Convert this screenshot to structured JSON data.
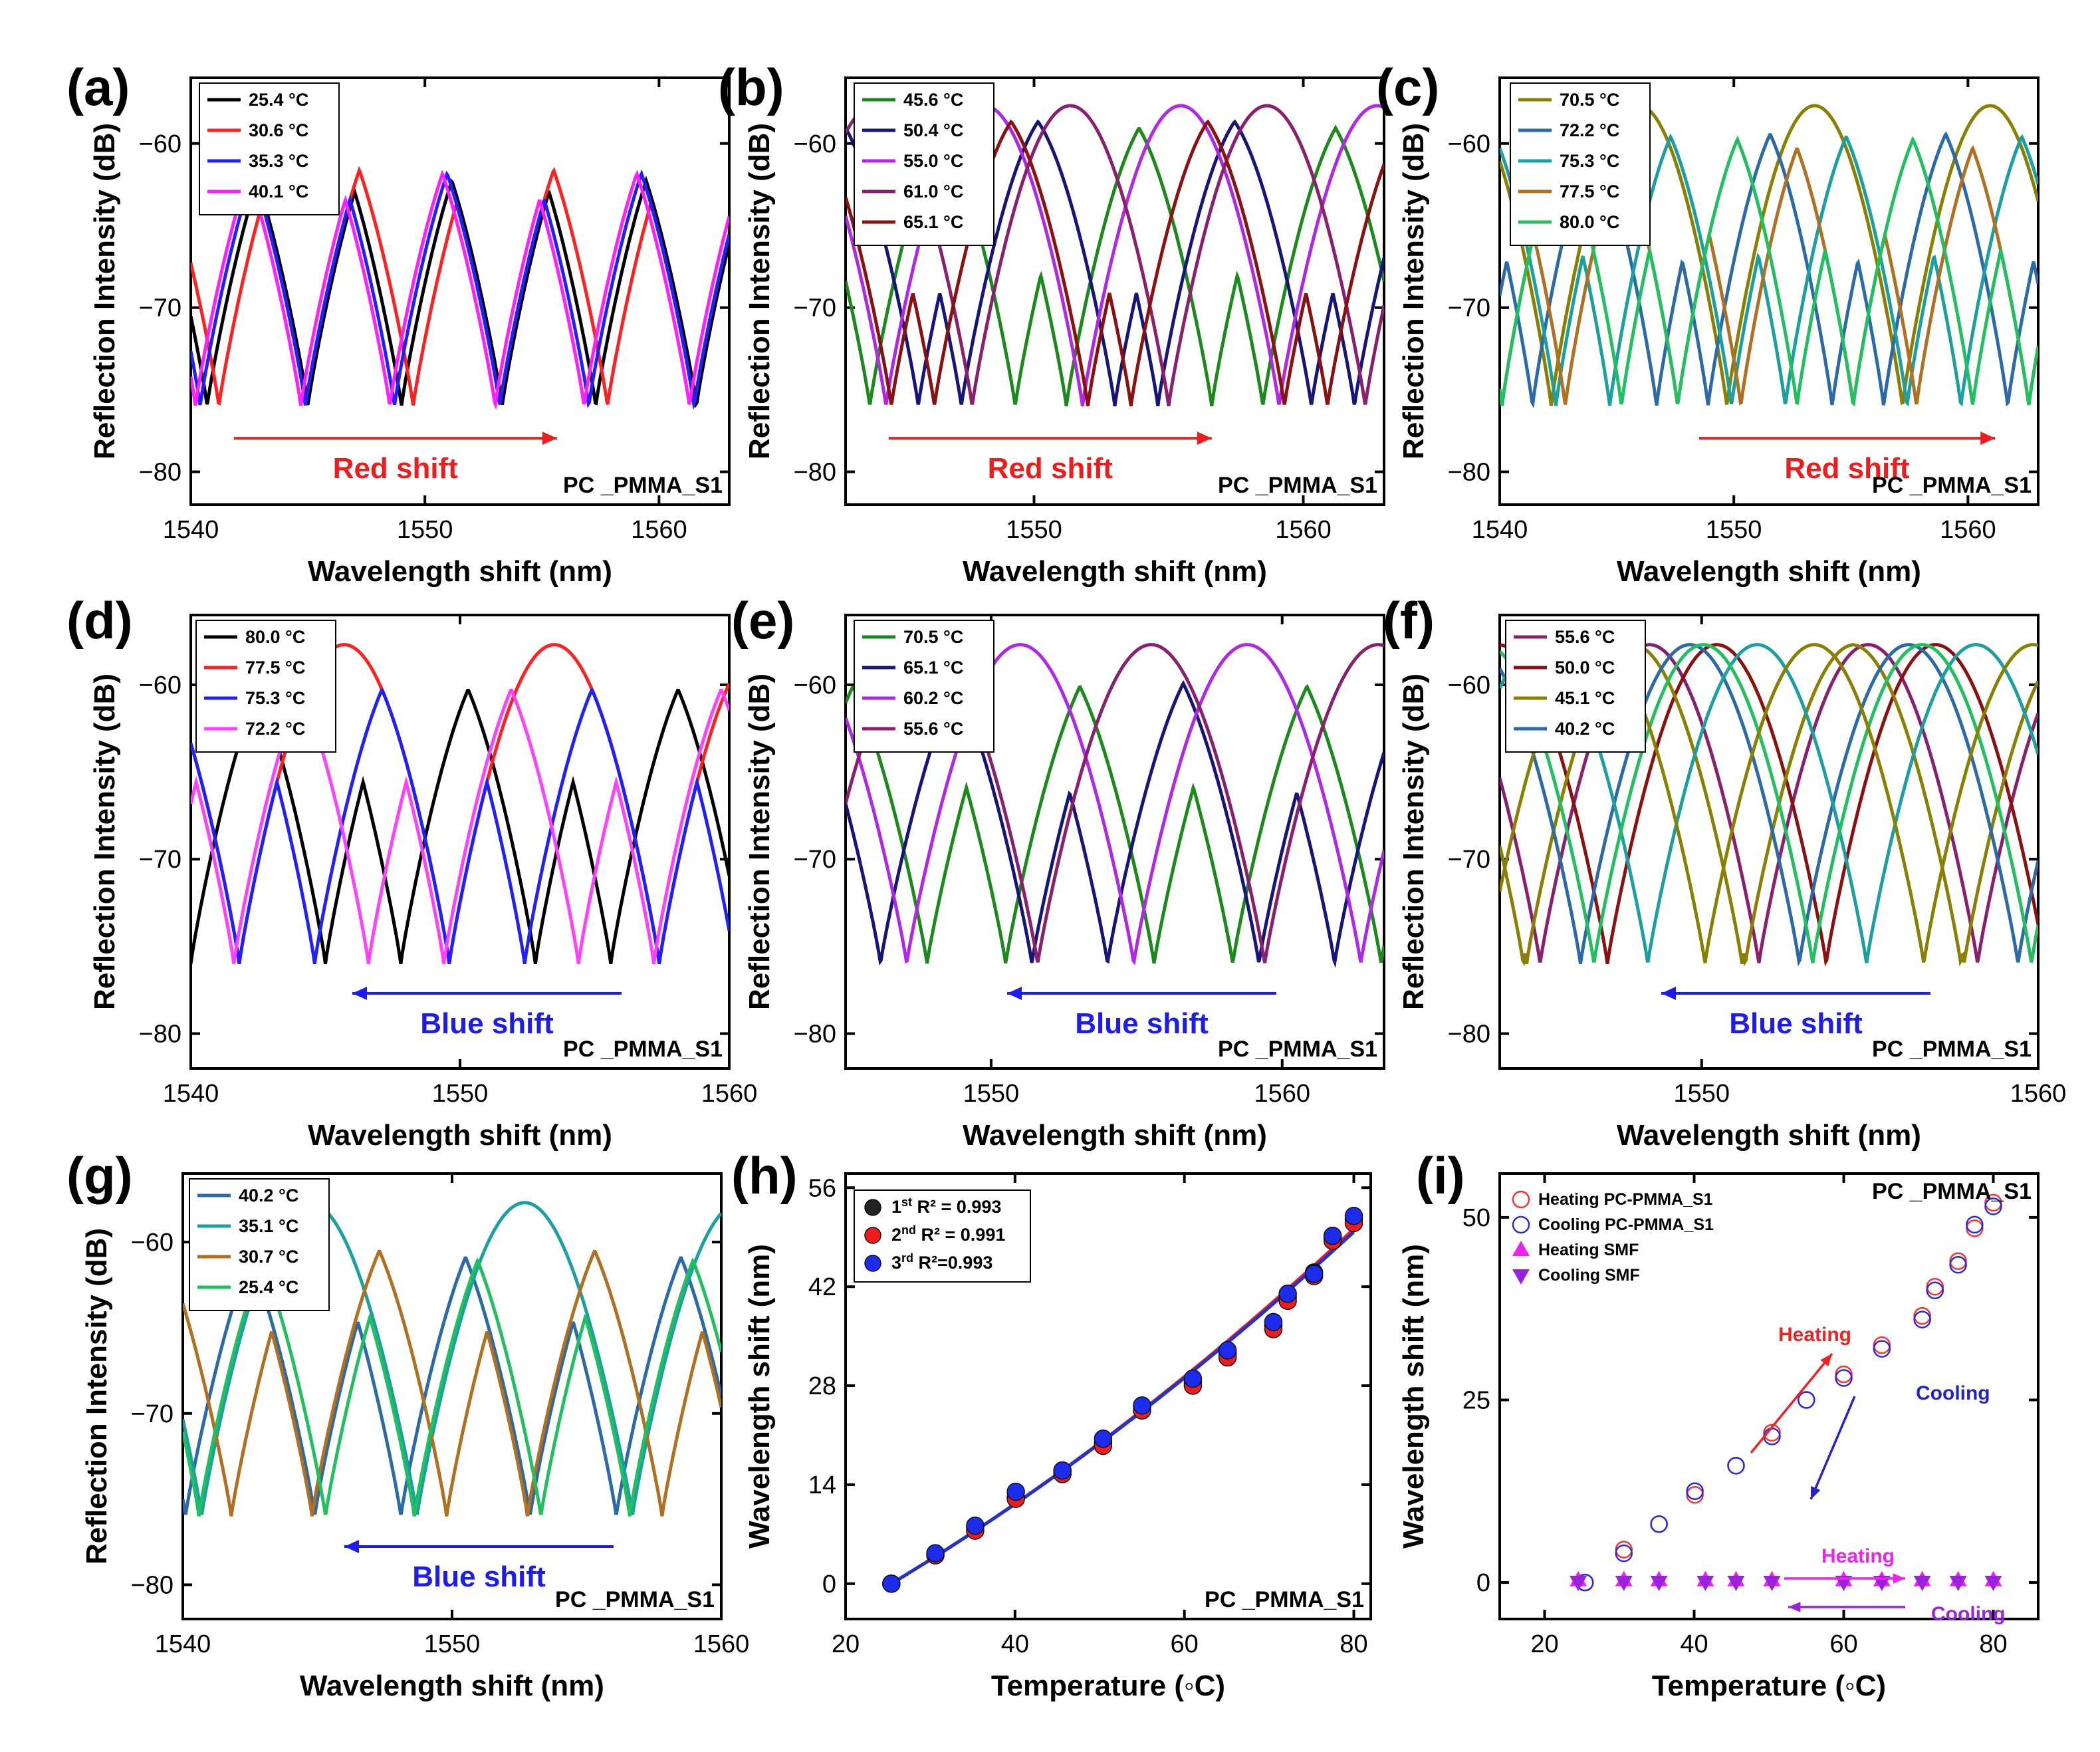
{
  "chart_data": [
    {
      "panel": "(a)",
      "type": "line",
      "xlabel": "Wavelength shift (nm)",
      "ylabel": "Reflection Intensity (dB)",
      "xlim": [
        1540,
        1563
      ],
      "ylim": [
        -82,
        -56
      ],
      "xticks": [
        1540,
        1550,
        1560
      ],
      "yticks": [
        -60,
        -70,
        -80
      ],
      "annotation": "Red shift",
      "shift_dir": "right",
      "sample": "PC _PMMA_S1",
      "fsr": 8.3,
      "series": [
        {
          "name": "25.4 °C",
          "color": "#000000",
          "dips": [
            1540.7,
            1553.3
          ]
        },
        {
          "name": "30.6 °C",
          "color": "#ff2020",
          "dips": [
            1544.9,
            1557.8
          ]
        },
        {
          "name": "35.3 °C",
          "color": "#2020ff",
          "dips": [
            1548.7,
            1561.5
          ]
        },
        {
          "name": "40.1 °C",
          "color": "#ff20ff",
          "dips": [
            1540.2,
            1553.0
          ]
        }
      ]
    },
    {
      "panel": "(b)",
      "type": "line",
      "xlabel": "Wavelength shift (nm)",
      "ylabel": "Reflection Intensity (dB)",
      "xlim": [
        1543,
        1563
      ],
      "ylim": [
        -82,
        -56
      ],
      "xticks": [
        1550,
        1560
      ],
      "yticks": [
        -60,
        -70,
        -80
      ],
      "annotation": "Red shift",
      "shift_dir": "right",
      "sample": "PC _PMMA_S1",
      "fsr": 7.3,
      "series": [
        {
          "name": "45.6 °C",
          "color": "#1a8a1a",
          "dips": [
            1543.9,
            1556.6
          ]
        },
        {
          "name": "50.4 °C",
          "color": "#15157a",
          "dips": [
            1547.3,
            1560.3
          ]
        },
        {
          "name": "55.0 °C",
          "color": "#b027e8",
          "dips": [
            1551.8
          ]
        },
        {
          "name": "61.0 °C",
          "color": "#8a1f6e",
          "dips": [
            1555.0
          ]
        },
        {
          "name": "65.1 °C",
          "color": "#8b1010",
          "dips": [
            1546.3,
            1559.3
          ]
        }
      ]
    },
    {
      "panel": "(c)",
      "type": "line",
      "xlabel": "Wavelength shift (nm)",
      "ylabel": "Reflection Intensity (dB)",
      "xlim": [
        1540,
        1563
      ],
      "ylim": [
        -82,
        -56
      ],
      "xticks": [
        1540,
        1550,
        1560
      ],
      "yticks": [
        -60,
        -70,
        -80
      ],
      "annotation": "Red shift",
      "shift_dir": "right",
      "sample": "PC _PMMA_S1",
      "fsr": 7.5,
      "series": [
        {
          "name": "70.5 °C",
          "color": "#8a8000",
          "dips": [
            1549.7
          ]
        },
        {
          "name": "72.2 °C",
          "color": "#2a6aa8",
          "dips": [
            1541.4,
            1554.2
          ]
        },
        {
          "name": "75.3 °C",
          "color": "#1aa0a0",
          "dips": [
            1544.7,
            1557.4
          ]
        },
        {
          "name": "77.5 °C",
          "color": "#b07020",
          "dips": [
            1550.3,
            1562.6
          ]
        },
        {
          "name": "80.0 °C",
          "color": "#20c060",
          "dips": [
            1540.1,
            1552.7
          ]
        }
      ]
    },
    {
      "panel": "(d)",
      "type": "line",
      "xlabel": "Wavelength shift (nm)",
      "ylabel": "Reflection Intensity (dB)",
      "xlim": [
        1540,
        1560
      ],
      "ylim": [
        -82,
        -56
      ],
      "xticks": [
        1540,
        1550,
        1560
      ],
      "yticks": [
        -60,
        -70,
        -80
      ],
      "annotation": "Blue shift",
      "shift_dir": "left",
      "sample": "PC _PMMA_S1",
      "fsr": 7.8,
      "series": [
        {
          "name": "80.0 °C",
          "color": "#000000",
          "dips": [
            1540.0,
            1552.8
          ]
        },
        {
          "name": "77.5 °C",
          "color": "#ff2020",
          "dips": [
            1549.6
          ]
        },
        {
          "name": "75.3 °C",
          "color": "#2020ff",
          "dips": [
            1544.6,
            1557.4
          ]
        },
        {
          "name": "72.2 °C",
          "color": "#ff40ff",
          "dips": [
            1541.6,
            1554.4
          ]
        }
      ]
    },
    {
      "panel": "(e)",
      "type": "line",
      "xlabel": "Wavelength shift (nm)",
      "ylabel": "Reflection Intensity (dB)",
      "xlim": [
        1545,
        1563.5
      ],
      "ylim": [
        -82,
        -56
      ],
      "xticks": [
        1550,
        1560
      ],
      "yticks": [
        -60,
        -70,
        -80
      ],
      "annotation": "Blue shift",
      "shift_dir": "left",
      "sample": "PC _PMMA_S1",
      "fsr": 7.8,
      "series": [
        {
          "name": "70.5 °C",
          "color": "#1a8a1a",
          "dips": [
            1550.5,
            1563.4
          ]
        },
        {
          "name": "65.1 °C",
          "color": "#15157a",
          "dips": [
            1546.2,
            1559.2
          ]
        },
        {
          "name": "60.2 °C",
          "color": "#b027e8",
          "dips": [
            1554.9
          ]
        },
        {
          "name": "55.6 °C",
          "color": "#8a1f6e",
          "dips": [
            1551.6
          ]
        }
      ]
    },
    {
      "panel": "(f)",
      "type": "line",
      "xlabel": "Wavelength shift (nm)",
      "ylabel": "Reflection Intensity (dB)",
      "xlim": [
        1544,
        1560
      ],
      "ylim": [
        -82,
        -56
      ],
      "xticks": [
        1550,
        1560
      ],
      "yticks": [
        -60,
        -70,
        -80
      ],
      "annotation": "Blue shift",
      "shift_dir": "left",
      "sample": "PC _PMMA_S1",
      "fsr": 6.5,
      "series": [
        {
          "name": "55.6 °C",
          "color": "#8a1f6e",
          "dips": [
            1551.7
          ]
        },
        {
          "name": "50.0 °C",
          "color": "#8b1010",
          "dips": [
            1547.2
          ]
        },
        {
          "name": "45.1 °C",
          "color": "#8a8000",
          "dips": [
            1544.8,
            1557.7
          ]
        },
        {
          "name": "40.2 °C",
          "color": "#2a6aa8",
          "dips": [
            1552.9
          ]
        },
        {
          "name": "",
          "color": "#1aa0a0",
          "dips": [
            1548.4
          ]
        },
        {
          "name": "",
          "color": "#20c060",
          "dips": [
            1553.3
          ]
        },
        {
          "name": "",
          "color": "#8a8000",
          "dips": [
            1556.6
          ]
        }
      ]
    },
    {
      "panel": "(g)",
      "type": "line",
      "xlabel": "Wavelength shift (nm)",
      "ylabel": "Reflection Intensity (dB)",
      "xlim": [
        1540,
        1560
      ],
      "ylim": [
        -82,
        -56
      ],
      "xticks": [
        1540,
        1550,
        1560
      ],
      "yticks": [
        -60,
        -70,
        -80
      ],
      "annotation": "Blue shift",
      "shift_dir": "left",
      "sample": "PC _PMMA_S1",
      "fsr": 8.0,
      "series": [
        {
          "name": "40.2 °C",
          "color": "#2a6aa8",
          "dips": [
            1540.1,
            1552.9
          ]
        },
        {
          "name": "35.1 °C",
          "color": "#1aa0a0",
          "dips": [
            1548.7
          ]
        },
        {
          "name": "30.7 °C",
          "color": "#b07020",
          "dips": [
            1544.8,
            1557.8
          ]
        },
        {
          "name": "25.4 °C",
          "color": "#20c060",
          "dips": [
            1540.6,
            1553.3
          ]
        }
      ]
    },
    {
      "panel": "(h)",
      "type": "scatter",
      "xlabel": "Temperature (◦C)",
      "ylabel": "Wavelength shift (nm)",
      "xlim": [
        20,
        82
      ],
      "ylim": [
        -5,
        58
      ],
      "xticks": [
        20,
        40,
        60,
        80
      ],
      "yticks": [
        0,
        14,
        28,
        42,
        56
      ],
      "sample": "PC _PMMA_S1",
      "legend": [
        {
          "sup": "st",
          "num": "1",
          "r2": "R² = 0.993",
          "color": "#222222"
        },
        {
          "sup": "nd",
          "num": "2",
          "r2": "R² = 0.991",
          "color": "#ee1c1c"
        },
        {
          "sup": "rd",
          "num": "3",
          "r2": "R²=0.993",
          "color": "#1c2cee"
        }
      ],
      "x": [
        25.4,
        30.6,
        35.3,
        40.1,
        45.6,
        50.4,
        55.0,
        61.0,
        65.1,
        70.5,
        72.2,
        75.3,
        77.5,
        80.0
      ],
      "series": [
        {
          "name": "1st",
          "color": "#222222",
          "values": [
            0,
            4.2,
            8.0,
            12.2,
            16.0,
            20.0,
            25.0,
            28.5,
            32.5,
            36.5,
            40.5,
            44.0,
            49.0,
            51.5
          ]
        },
        {
          "name": "2nd",
          "color": "#ee1c1c",
          "values": [
            0,
            4.0,
            7.5,
            12.0,
            15.5,
            19.5,
            24.5,
            28.0,
            32.0,
            36.0,
            40.0,
            43.5,
            48.5,
            51.0
          ]
        },
        {
          "name": "3rd",
          "color": "#1c2cee",
          "values": [
            0,
            4.3,
            8.2,
            13.0,
            16.0,
            20.5,
            25.2,
            29.0,
            33.0,
            37.0,
            41.0,
            43.8,
            49.2,
            52.0
          ]
        }
      ],
      "fit": {
        "color": "#2233cc",
        "a": 0.72,
        "b": 0.0035,
        "x0": 25.4
      }
    },
    {
      "panel": "(i)",
      "type": "scatter",
      "xlabel": "Temperature (◦C)",
      "ylabel": "Wavelength shift (nm)",
      "xlim": [
        14,
        86
      ],
      "ylim": [
        -5,
        56
      ],
      "xticks": [
        20,
        40,
        60,
        80
      ],
      "yticks": [
        0,
        25,
        50
      ],
      "sample": "PC _PMMA_S1",
      "legend": [
        "Heating PC-PMMA_S1",
        "Cooling PC-PMMA_S1",
        "Heating SMF",
        "Cooling SMF"
      ],
      "series": [
        {
          "name": "Heating PC-PMMA_S1",
          "color": "#ff3030",
          "marker": "open-circle",
          "x": [
            25.4,
            30.6,
            35.3,
            40.1,
            45.6,
            50.4,
            55.0,
            60.0,
            65.1,
            70.5,
            72.2,
            75.3,
            77.5,
            80.0
          ],
          "values": [
            0,
            4.5,
            8.0,
            12.0,
            16.0,
            20.5,
            25.0,
            28.5,
            32.5,
            36.5,
            40.5,
            44.0,
            48.5,
            52.0
          ]
        },
        {
          "name": "Cooling PC-PMMA_S1",
          "color": "#2a2ae0",
          "marker": "open-circle",
          "x": [
            25.4,
            30.6,
            35.3,
            40.1,
            45.6,
            50.4,
            55.0,
            60.0,
            65.1,
            70.5,
            72.2,
            75.3,
            77.5,
            80.0
          ],
          "values": [
            0,
            4.0,
            8.0,
            12.5,
            16.0,
            20.0,
            25.0,
            28.0,
            32.0,
            36.0,
            40.0,
            43.5,
            49.0,
            51.5
          ]
        },
        {
          "name": "Heating SMF",
          "color": "#ee22ee",
          "marker": "triangle-up",
          "x": [
            24.5,
            30.6,
            35.3,
            41.5,
            45.6,
            50.4,
            60.0,
            65.1,
            70.5,
            75.3,
            80.0
          ],
          "values": [
            0.3,
            0.3,
            0.3,
            0.3,
            0.3,
            0.3,
            0.3,
            0.3,
            0.3,
            0.3,
            0.3
          ]
        },
        {
          "name": "Cooling SMF",
          "color": "#9a22dd",
          "marker": "triangle-down",
          "x": [
            24.5,
            30.6,
            35.3,
            41.5,
            45.6,
            50.4,
            60.0,
            65.1,
            70.5,
            75.3,
            80.0
          ],
          "values": [
            0.1,
            0.1,
            0.1,
            0.1,
            0.1,
            0.1,
            0.1,
            0.1,
            0.1,
            0.1,
            0.1
          ]
        }
      ],
      "annotations": [
        {
          "text": "Heating",
          "color": "#ee2222"
        },
        {
          "text": "Cooling",
          "color": "#2222cc"
        },
        {
          "text": "Heating",
          "color": "#ee22ee"
        },
        {
          "text": "Cooling",
          "color": "#9a22dd"
        }
      ]
    }
  ]
}
